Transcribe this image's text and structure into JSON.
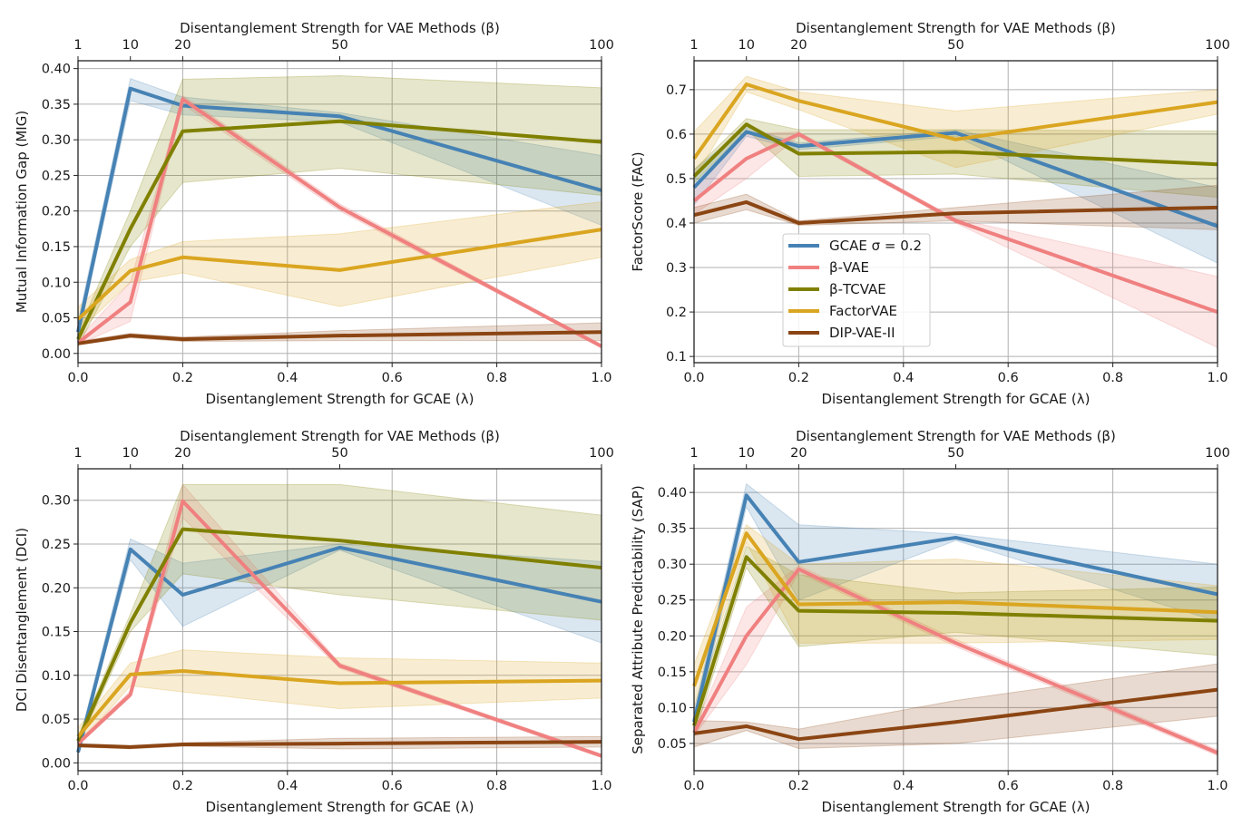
{
  "chart_data": [
    {
      "type": "line",
      "xlabel": "Disentanglement Strength for GCAE (λ)",
      "top_xlabel": "Disentanglement Strength for VAE Methods (β)",
      "ylabel": "Mutual Information Gap (MIG)",
      "x": [
        0,
        0.1,
        0.2,
        0.5,
        1.0
      ],
      "xlim": [
        0,
        1.0
      ],
      "xticks": [
        "0.0",
        "0.2",
        "0.4",
        "0.6",
        "0.8",
        "1.0"
      ],
      "top_xticks": {
        "labels": [
          "1",
          "10",
          "20",
          "50",
          "100"
        ],
        "at_lambda": [
          0,
          0.1,
          0.2,
          0.5,
          1.0
        ]
      },
      "ylim": [
        -0.013,
        0.411
      ],
      "yticks": [
        "0.00",
        "0.05",
        "0.10",
        "0.15",
        "0.20",
        "0.25",
        "0.30",
        "0.35",
        "0.40"
      ],
      "grid": true,
      "series": [
        {
          "name": "GCAE σ = 0.2",
          "values": [
            0.03,
            0.372,
            0.348,
            0.333,
            0.229
          ],
          "lower": [
            0.02,
            0.355,
            0.335,
            0.325,
            0.18
          ],
          "upper": [
            0.045,
            0.386,
            0.36,
            0.338,
            0.278
          ]
        },
        {
          "name": "β-VAE",
          "values": [
            0.015,
            0.072,
            0.357,
            0.205,
            0.01
          ],
          "lower": [
            0.012,
            0.045,
            0.35,
            0.2,
            0.008
          ],
          "upper": [
            0.02,
            0.1,
            0.362,
            0.21,
            0.012
          ]
        },
        {
          "name": "β-TCVAE",
          "values": [
            0.02,
            0.175,
            0.312,
            0.326,
            0.297
          ],
          "lower": [
            0.01,
            0.15,
            0.24,
            0.26,
            0.222
          ],
          "upper": [
            0.03,
            0.2,
            0.385,
            0.39,
            0.373
          ]
        },
        {
          "name": "FactorVAE",
          "values": [
            0.048,
            0.116,
            0.135,
            0.117,
            0.174
          ],
          "lower": [
            0.03,
            0.1,
            0.113,
            0.066,
            0.135
          ],
          "upper": [
            0.065,
            0.132,
            0.157,
            0.168,
            0.213
          ]
        },
        {
          "name": "DIP-VAE-II",
          "values": [
            0.014,
            0.025,
            0.02,
            0.025,
            0.03
          ],
          "lower": [
            0.012,
            0.022,
            0.017,
            0.018,
            0.018
          ],
          "upper": [
            0.017,
            0.028,
            0.023,
            0.032,
            0.043
          ]
        }
      ]
    },
    {
      "type": "line",
      "xlabel": "Disentanglement Strength for GCAE (λ)",
      "top_xlabel": "Disentanglement Strength for VAE Methods (β)",
      "ylabel": "FactorScore (FAC)",
      "x": [
        0,
        0.1,
        0.2,
        0.5,
        1.0
      ],
      "xlim": [
        0,
        1.0
      ],
      "xticks": [
        "0.0",
        "0.2",
        "0.4",
        "0.6",
        "0.8",
        "1.0"
      ],
      "top_xticks": {
        "labels": [
          "1",
          "10",
          "20",
          "50",
          "100"
        ],
        "at_lambda": [
          0,
          0.1,
          0.2,
          0.5,
          1.0
        ]
      },
      "ylim": [
        0.086,
        0.765
      ],
      "yticks": [
        "0.1",
        "0.2",
        "0.3",
        "0.4",
        "0.5",
        "0.6",
        "0.7"
      ],
      "grid": true,
      "legend": {
        "placement": "center-left",
        "entries": [
          "GCAE σ = 0.2",
          "β-VAE",
          "β-TCVAE",
          "FactorVAE",
          "DIP-VAE-II"
        ]
      },
      "series": [
        {
          "name": "GCAE σ = 0.2",
          "values": [
            0.48,
            0.605,
            0.573,
            0.603,
            0.393
          ],
          "lower": [
            0.44,
            0.595,
            0.565,
            0.595,
            0.31
          ],
          "upper": [
            0.52,
            0.615,
            0.58,
            0.61,
            0.48
          ]
        },
        {
          "name": "β-VAE",
          "values": [
            0.45,
            0.545,
            0.6,
            0.405,
            0.2
          ],
          "lower": [
            0.42,
            0.5,
            0.595,
            0.4,
            0.12
          ],
          "upper": [
            0.48,
            0.6,
            0.605,
            0.41,
            0.28
          ]
        },
        {
          "name": "β-TCVAE",
          "values": [
            0.505,
            0.622,
            0.556,
            0.56,
            0.532
          ],
          "lower": [
            0.49,
            0.61,
            0.505,
            0.51,
            0.458
          ],
          "upper": [
            0.52,
            0.635,
            0.61,
            0.61,
            0.607
          ]
        },
        {
          "name": "FactorVAE",
          "values": [
            0.545,
            0.712,
            0.675,
            0.588,
            0.672
          ],
          "lower": [
            0.5,
            0.695,
            0.655,
            0.525,
            0.645
          ],
          "upper": [
            0.605,
            0.73,
            0.695,
            0.652,
            0.7
          ]
        },
        {
          "name": "DIP-VAE-II",
          "values": [
            0.418,
            0.447,
            0.4,
            0.422,
            0.435
          ],
          "lower": [
            0.4,
            0.43,
            0.395,
            0.405,
            0.385
          ],
          "upper": [
            0.435,
            0.465,
            0.405,
            0.435,
            0.485
          ]
        }
      ]
    },
    {
      "type": "line",
      "xlabel": "Disentanglement Strength for GCAE (λ)",
      "top_xlabel": "Disentanglement Strength for VAE Methods (β)",
      "ylabel": "DCI Disentanglement (DCI)",
      "x": [
        0,
        0.1,
        0.2,
        0.5,
        1.0
      ],
      "xlim": [
        0,
        1.0
      ],
      "xticks": [
        "0.0",
        "0.2",
        "0.4",
        "0.6",
        "0.8",
        "1.0"
      ],
      "top_xticks": {
        "labels": [
          "1",
          "10",
          "20",
          "50",
          "100"
        ],
        "at_lambda": [
          0,
          0.1,
          0.2,
          0.5,
          1.0
        ]
      },
      "ylim": [
        -0.009,
        0.336
      ],
      "yticks": [
        "0.00",
        "0.05",
        "0.10",
        "0.15",
        "0.20",
        "0.25",
        "0.30"
      ],
      "grid": true,
      "series": [
        {
          "name": "GCAE σ = 0.2",
          "values": [
            0.012,
            0.244,
            0.192,
            0.246,
            0.184
          ],
          "lower": [
            0.01,
            0.232,
            0.156,
            0.243,
            0.137
          ],
          "upper": [
            0.02,
            0.256,
            0.228,
            0.25,
            0.23
          ]
        },
        {
          "name": "β-VAE",
          "values": [
            0.022,
            0.078,
            0.299,
            0.111,
            0.008
          ],
          "lower": [
            0.02,
            0.075,
            0.28,
            0.108,
            0.006
          ],
          "upper": [
            0.025,
            0.082,
            0.318,
            0.114,
            0.01
          ]
        },
        {
          "name": "β-TCVAE",
          "values": [
            0.025,
            0.16,
            0.267,
            0.254,
            0.223
          ],
          "lower": [
            0.02,
            0.15,
            0.216,
            0.192,
            0.163
          ],
          "upper": [
            0.03,
            0.17,
            0.318,
            0.318,
            0.283
          ]
        },
        {
          "name": "FactorVAE",
          "values": [
            0.03,
            0.101,
            0.105,
            0.091,
            0.094
          ],
          "lower": [
            0.02,
            0.088,
            0.081,
            0.062,
            0.074
          ],
          "upper": [
            0.04,
            0.114,
            0.129,
            0.12,
            0.114
          ]
        },
        {
          "name": "DIP-VAE-II",
          "values": [
            0.02,
            0.018,
            0.021,
            0.022,
            0.024
          ],
          "lower": [
            0.018,
            0.016,
            0.019,
            0.016,
            0.018
          ],
          "upper": [
            0.022,
            0.02,
            0.023,
            0.028,
            0.03
          ]
        }
      ]
    },
    {
      "type": "line",
      "xlabel": "Disentanglement Strength for GCAE (λ)",
      "top_xlabel": "Disentanglement Strength for VAE Methods (β)",
      "ylabel": "Separated Attribute Predictability (SAP)",
      "x": [
        0,
        0.1,
        0.2,
        0.5,
        1.0
      ],
      "xlim": [
        0,
        1.0
      ],
      "xticks": [
        "0.0",
        "0.2",
        "0.4",
        "0.6",
        "0.8",
        "1.0"
      ],
      "top_xticks": {
        "labels": [
          "1",
          "10",
          "20",
          "50",
          "100"
        ],
        "at_lambda": [
          0,
          0.1,
          0.2,
          0.5,
          1.0
        ]
      },
      "ylim": [
        0.012,
        0.433
      ],
      "yticks": [
        "0.05",
        "0.10",
        "0.15",
        "0.20",
        "0.25",
        "0.30",
        "0.35",
        "0.40"
      ],
      "grid": true,
      "series": [
        {
          "name": "GCAE σ = 0.2",
          "values": [
            0.08,
            0.396,
            0.303,
            0.337,
            0.258
          ],
          "lower": [
            0.065,
            0.38,
            0.25,
            0.333,
            0.22
          ],
          "upper": [
            0.095,
            0.412,
            0.355,
            0.342,
            0.3
          ]
        },
        {
          "name": "β-VAE",
          "values": [
            0.065,
            0.2,
            0.293,
            0.19,
            0.037
          ],
          "lower": [
            0.06,
            0.16,
            0.288,
            0.185,
            0.033
          ],
          "upper": [
            0.07,
            0.24,
            0.298,
            0.195,
            0.041
          ]
        },
        {
          "name": "β-TCVAE",
          "values": [
            0.075,
            0.31,
            0.235,
            0.232,
            0.221
          ],
          "lower": [
            0.06,
            0.295,
            0.185,
            0.205,
            0.173
          ],
          "upper": [
            0.09,
            0.325,
            0.285,
            0.26,
            0.268
          ]
        },
        {
          "name": "FactorVAE",
          "values": [
            0.13,
            0.343,
            0.244,
            0.247,
            0.233
          ],
          "lower": [
            0.1,
            0.33,
            0.19,
            0.19,
            0.195
          ],
          "upper": [
            0.16,
            0.355,
            0.3,
            0.307,
            0.27
          ]
        },
        {
          "name": "DIP-VAE-II",
          "values": [
            0.064,
            0.074,
            0.056,
            0.08,
            0.125
          ],
          "lower": [
            0.045,
            0.068,
            0.043,
            0.05,
            0.088
          ],
          "upper": [
            0.082,
            0.08,
            0.07,
            0.11,
            0.161
          ]
        }
      ]
    }
  ],
  "colors": {
    "GCAE σ = 0.2": "#4682b4",
    "β-VAE": "#f08080",
    "β-TCVAE": "#808000",
    "FactorVAE": "#daa520",
    "DIP-VAE-II": "#8b4513"
  }
}
